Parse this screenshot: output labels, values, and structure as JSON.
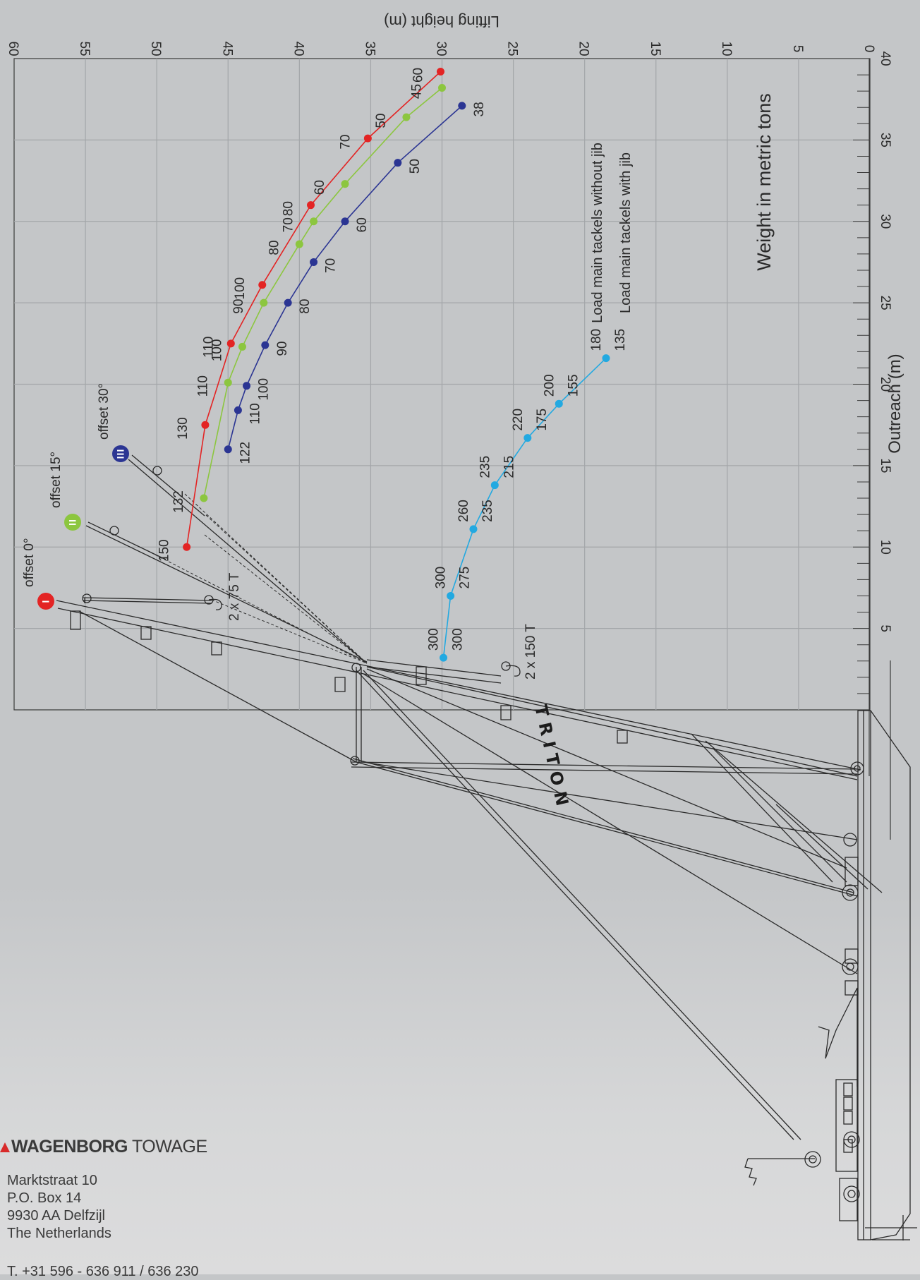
{
  "brand": {
    "name_bold": "WAGENBORG",
    "name_light": "TOWAGE"
  },
  "address": {
    "line1": "Marktstraat 10",
    "line2": "P.O. Box 14",
    "line3": "9930 AA  Delfzijl",
    "line4": "The Netherlands",
    "phone": "T. +31 596 - 636 911 / 636 230"
  },
  "vessel_name": "TRITON",
  "offsets": [
    {
      "label": "offset 0°",
      "symbol": "I",
      "color": "#e32424"
    },
    {
      "label": "offset 15°",
      "symbol": "II",
      "color": "#8cc63f"
    },
    {
      "label": "offset 30°",
      "symbol": "III",
      "color": "#2b3593"
    }
  ],
  "tackle_labels": {
    "jib": "2 x 75 T",
    "main": "2 x 150 T"
  },
  "chart_data": {
    "type": "line",
    "title": "Weight in metric tons",
    "xlabel": "Outreach (m)",
    "ylabel": "Lifting height (m)",
    "xlim": [
      0,
      40
    ],
    "ylim": [
      0,
      60
    ],
    "x_ticks": [
      5,
      10,
      15,
      20,
      25,
      30,
      35,
      40
    ],
    "y_ticks": [
      0,
      5,
      10,
      15,
      20,
      25,
      30,
      35,
      40,
      45,
      50,
      55,
      60
    ],
    "grid": true,
    "legend": [
      "Load main tackels without jib",
      "Load main tackels with jib"
    ],
    "series": [
      {
        "name": "offset 0°",
        "color": "#e32424",
        "points": [
          {
            "x": 10,
            "y": 47.9,
            "label": "150"
          },
          {
            "x": 17.5,
            "y": 46.6,
            "label": "130"
          },
          {
            "x": 22.5,
            "y": 44.8,
            "label": "110"
          },
          {
            "x": 26.1,
            "y": 42.6,
            "label": "100"
          },
          {
            "x": 31,
            "y": 39.2,
            "label": "80"
          },
          {
            "x": 35.1,
            "y": 35.2,
            "label": "70"
          },
          {
            "x": 39.2,
            "y": 30.1,
            "label": "60"
          }
        ]
      },
      {
        "name": "offset 15°",
        "color": "#8cc63f",
        "points": [
          {
            "x": 13,
            "y": 46.7,
            "label": "132"
          },
          {
            "x": 20.1,
            "y": 45.0,
            "label": "110"
          },
          {
            "x": 22.3,
            "y": 44.0,
            "label": "100"
          },
          {
            "x": 25,
            "y": 42.5,
            "label": "90"
          },
          {
            "x": 28.6,
            "y": 40.0,
            "label": "80"
          },
          {
            "x": 30,
            "y": 39.0,
            "label": "70"
          },
          {
            "x": 32.3,
            "y": 36.8,
            "label": "60"
          },
          {
            "x": 36.4,
            "y": 32.5,
            "label": "50"
          },
          {
            "x": 38.2,
            "y": 30.0,
            "label": "45"
          }
        ]
      },
      {
        "name": "offset 30°",
        "color": "#2b3593",
        "points": [
          {
            "x": 16,
            "y": 45.0,
            "label": "122"
          },
          {
            "x": 18.4,
            "y": 44.3,
            "label": "110"
          },
          {
            "x": 19.9,
            "y": 43.7,
            "label": "100"
          },
          {
            "x": 22.4,
            "y": 42.4,
            "label": "90"
          },
          {
            "x": 25,
            "y": 40.8,
            "label": "80"
          },
          {
            "x": 27.5,
            "y": 39.0,
            "label": "70"
          },
          {
            "x": 30,
            "y": 36.8,
            "label": "60"
          },
          {
            "x": 33.6,
            "y": 33.1,
            "label": "50"
          },
          {
            "x": 37.1,
            "y": 28.6,
            "label": "38"
          }
        ]
      },
      {
        "name": "main tackles",
        "color": "#22a9e1",
        "points": [
          {
            "x": 3.2,
            "y": 29.9,
            "label_without_jib": "300",
            "label_with_jib": "300"
          },
          {
            "x": 7.0,
            "y": 29.4,
            "label_without_jib": "300",
            "label_with_jib": "275"
          },
          {
            "x": 11.1,
            "y": 27.8,
            "label_without_jib": "260",
            "label_with_jib": "235"
          },
          {
            "x": 13.8,
            "y": 26.3,
            "label_without_jib": "235",
            "label_with_jib": "215"
          },
          {
            "x": 16.7,
            "y": 24.0,
            "label_without_jib": "220",
            "label_with_jib": "175"
          },
          {
            "x": 18.8,
            "y": 21.8,
            "label_without_jib": "200",
            "label_with_jib": "155"
          },
          {
            "x": 21.6,
            "y": 18.5,
            "label_without_jib": "180",
            "label_with_jib": "135"
          }
        ]
      }
    ]
  }
}
